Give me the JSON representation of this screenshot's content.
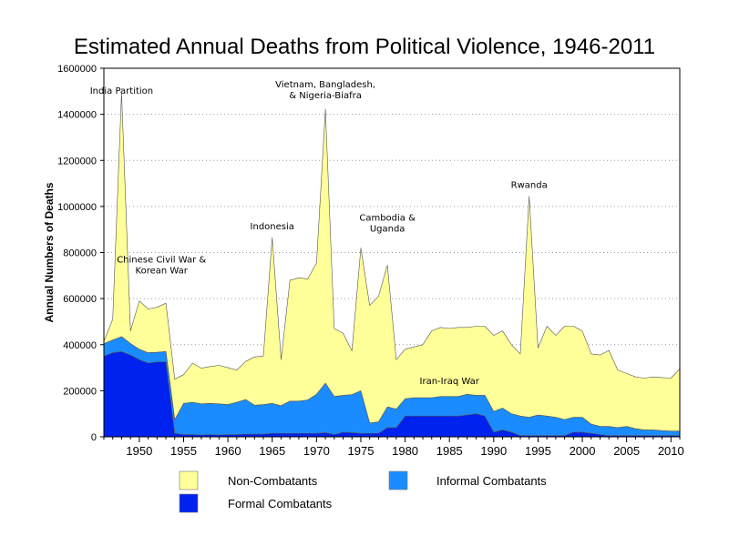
{
  "chart_data": {
    "type": "area",
    "stacked": true,
    "title": "Estimated Annual Deaths from Political Violence, 1946-2011",
    "ylabel": "Annual Numbers of Deaths",
    "xlabel": "",
    "xlim": [
      1946,
      2011
    ],
    "ylim": [
      0,
      1600000
    ],
    "y_ticks": [
      0,
      200000,
      400000,
      600000,
      800000,
      1000000,
      1200000,
      1400000,
      1600000
    ],
    "y_tick_labels": [
      "0",
      "200000",
      "400000",
      "600000",
      "800000",
      "1000000",
      "1200000",
      "1400000",
      "1600000"
    ],
    "x_ticks": [
      1950,
      1955,
      1960,
      1965,
      1970,
      1975,
      1980,
      1985,
      1990,
      1995,
      2000,
      2005,
      2010
    ],
    "x_tick_labels": [
      "1950",
      "1955",
      "1960",
      "1965",
      "1970",
      "1975",
      "1980",
      "1985",
      "1990",
      "1995",
      "2000",
      "2005",
      "2010"
    ],
    "grid": "horizontal-dotted",
    "legend_position": "bottom",
    "x": [
      1946,
      1947,
      1948,
      1949,
      1950,
      1951,
      1952,
      1953,
      1954,
      1955,
      1956,
      1957,
      1958,
      1959,
      1960,
      1961,
      1962,
      1963,
      1964,
      1965,
      1966,
      1967,
      1968,
      1969,
      1970,
      1971,
      1972,
      1973,
      1974,
      1975,
      1976,
      1977,
      1978,
      1979,
      1980,
      1981,
      1982,
      1983,
      1984,
      1985,
      1986,
      1987,
      1988,
      1989,
      1990,
      1991,
      1992,
      1993,
      1994,
      1995,
      1996,
      1997,
      1998,
      1999,
      2000,
      2001,
      2002,
      2003,
      2004,
      2005,
      2006,
      2007,
      2008,
      2009,
      2010,
      2011
    ],
    "series": [
      {
        "name": "Formal Combatants",
        "color": "#0022ee",
        "values": [
          350000,
          365000,
          370000,
          355000,
          335000,
          320000,
          325000,
          325000,
          15000,
          10000,
          10000,
          8000,
          10000,
          8000,
          10000,
          10000,
          12000,
          12000,
          12000,
          15000,
          15000,
          15000,
          15000,
          15000,
          15000,
          18000,
          10000,
          20000,
          18000,
          15000,
          15000,
          15000,
          40000,
          40000,
          90000,
          90000,
          90000,
          90000,
          90000,
          90000,
          90000,
          95000,
          100000,
          90000,
          20000,
          30000,
          20000,
          5000,
          5000,
          5000,
          5000,
          5000,
          5000,
          20000,
          20000,
          15000,
          10000,
          5000,
          5000,
          5000,
          5000,
          5000,
          5000,
          5000,
          5000,
          5000
        ]
      },
      {
        "name": "Informal Combatants",
        "color": "#1a8cff",
        "values": [
          55000,
          55000,
          65000,
          50000,
          45000,
          45000,
          42000,
          45000,
          60000,
          135000,
          140000,
          135000,
          135000,
          135000,
          130000,
          140000,
          150000,
          125000,
          128000,
          130000,
          120000,
          140000,
          140000,
          145000,
          170000,
          215000,
          165000,
          160000,
          165000,
          185000,
          45000,
          50000,
          90000,
          80000,
          75000,
          80000,
          80000,
          80000,
          85000,
          85000,
          85000,
          90000,
          80000,
          90000,
          90000,
          95000,
          80000,
          85000,
          80000,
          90000,
          85000,
          80000,
          70000,
          65000,
          65000,
          40000,
          35000,
          40000,
          35000,
          40000,
          30000,
          25000,
          25000,
          22000,
          20000,
          20000
        ]
      },
      {
        "name": "Non-Combatants",
        "color": "#ffff99",
        "values": [
          10000,
          90000,
          1060000,
          55000,
          210000,
          190000,
          195000,
          210000,
          175000,
          125000,
          170000,
          155000,
          160000,
          167000,
          160000,
          140000,
          165000,
          210000,
          210000,
          720000,
          200000,
          525000,
          535000,
          525000,
          570000,
          1190000,
          295000,
          270000,
          190000,
          620000,
          510000,
          545000,
          615000,
          215000,
          215000,
          220000,
          230000,
          290000,
          300000,
          295000,
          300000,
          290000,
          300000,
          300000,
          330000,
          335000,
          300000,
          270000,
          960000,
          290000,
          390000,
          355000,
          405000,
          395000,
          375000,
          305000,
          310000,
          330000,
          250000,
          230000,
          225000,
          225000,
          230000,
          230000,
          230000,
          270000
        ]
      }
    ],
    "annotations": [
      {
        "lines": [
          "India Partition"
        ],
        "x": 1948,
        "y": 1490000
      },
      {
        "lines": [
          "Chinese Civil War &",
          "Korean War"
        ],
        "x": 1952.5,
        "y": 710000
      },
      {
        "lines": [
          "Indonesia"
        ],
        "x": 1965,
        "y": 900000
      },
      {
        "lines": [
          "Vietnam, Bangladesh,",
          "& Nigeria-Biafra"
        ],
        "x": 1971,
        "y": 1470000
      },
      {
        "lines": [
          "Cambodia &",
          "Uganda"
        ],
        "x": 1978,
        "y": 890000
      },
      {
        "lines": [
          "Rwanda"
        ],
        "x": 1994,
        "y": 1080000
      },
      {
        "lines": [
          "Iran-Iraq War"
        ],
        "x": 1985,
        "y": 230000
      }
    ]
  }
}
